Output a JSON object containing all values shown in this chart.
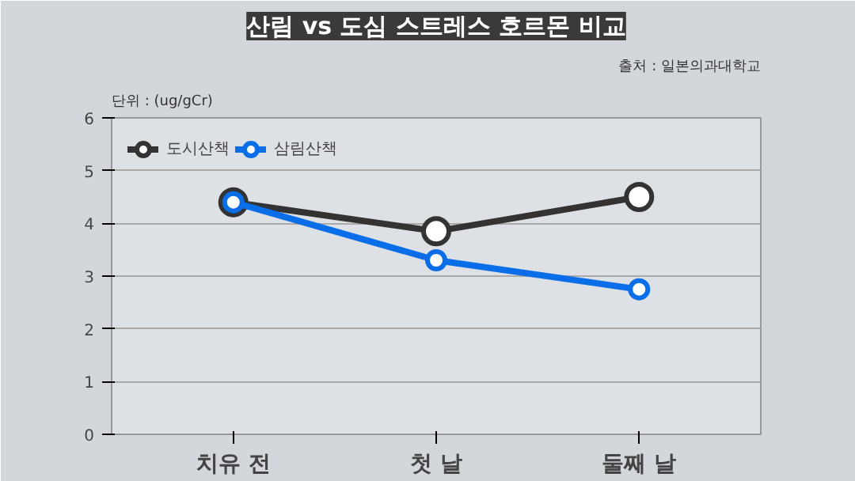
{
  "chart_data": {
    "type": "line",
    "title": "산림 vs 도심 스트레스 호르몬 비교",
    "annotations": [
      "출처 : 일본의과대학교"
    ],
    "ylabel": "단위 : (ug/gCr)",
    "categories": [
      "치유 전",
      "첫 날",
      "둘째 날"
    ],
    "series": [
      {
        "name": "도시산책",
        "color": "#333333",
        "values": [
          4.4,
          3.85,
          4.5
        ]
      },
      {
        "name": "삼림산책",
        "color": "#0a6ee8",
        "values": [
          4.4,
          3.3,
          2.75
        ]
      }
    ],
    "ylim": [
      0,
      6
    ],
    "yticks": [
      0,
      1,
      2,
      3,
      4,
      5,
      6
    ],
    "grid": "y",
    "legend": "top left",
    "marker": "circle",
    "line_style": "solid"
  }
}
